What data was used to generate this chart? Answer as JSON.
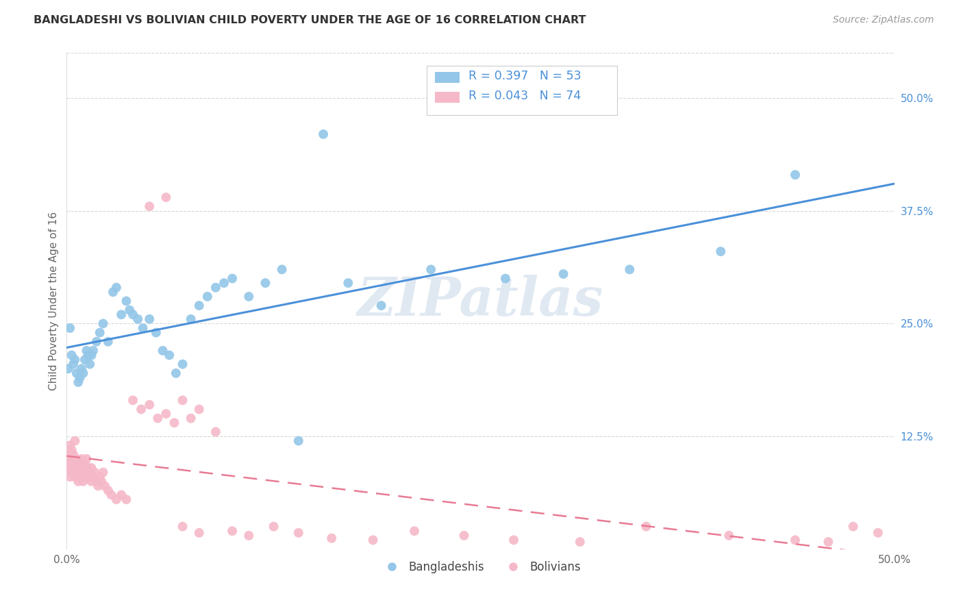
{
  "title": "BANGLADESHI VS BOLIVIAN CHILD POVERTY UNDER THE AGE OF 16 CORRELATION CHART",
  "source": "Source: ZipAtlas.com",
  "ylabel": "Child Poverty Under the Age of 16",
  "xlim": [
    0.0,
    0.5
  ],
  "ylim": [
    0.0,
    0.55
  ],
  "ytick_positions": [
    0.125,
    0.25,
    0.375,
    0.5
  ],
  "ytick_labels": [
    "12.5%",
    "25.0%",
    "37.5%",
    "50.0%"
  ],
  "bg_color": "#ffffff",
  "grid_color": "#d8d8d8",
  "watermark": "ZIPatlas",
  "legend_R1": "R = 0.397",
  "legend_N1": "N = 53",
  "legend_R2": "R = 0.043",
  "legend_N2": "N = 74",
  "blue_color": "#93c6e8",
  "pink_color": "#f5b8c8",
  "line_blue": "#4a90d9",
  "line_pink": "#e87a92",
  "tick_color": "#4a90d9",
  "title_color": "#333333",
  "bangladeshi_x": [
    0.001,
    0.002,
    0.003,
    0.004,
    0.005,
    0.006,
    0.007,
    0.008,
    0.009,
    0.01,
    0.011,
    0.012,
    0.013,
    0.014,
    0.015,
    0.016,
    0.018,
    0.02,
    0.022,
    0.025,
    0.028,
    0.03,
    0.033,
    0.036,
    0.038,
    0.04,
    0.043,
    0.046,
    0.05,
    0.054,
    0.058,
    0.062,
    0.066,
    0.07,
    0.075,
    0.08,
    0.085,
    0.09,
    0.095,
    0.1,
    0.11,
    0.12,
    0.13,
    0.14,
    0.155,
    0.17,
    0.19,
    0.22,
    0.265,
    0.3,
    0.34,
    0.395,
    0.44
  ],
  "bangladeshi_y": [
    0.2,
    0.245,
    0.215,
    0.205,
    0.21,
    0.195,
    0.185,
    0.19,
    0.2,
    0.195,
    0.21,
    0.22,
    0.215,
    0.205,
    0.215,
    0.22,
    0.23,
    0.24,
    0.25,
    0.23,
    0.285,
    0.29,
    0.26,
    0.275,
    0.265,
    0.26,
    0.255,
    0.245,
    0.255,
    0.24,
    0.22,
    0.215,
    0.195,
    0.205,
    0.255,
    0.27,
    0.28,
    0.29,
    0.295,
    0.3,
    0.28,
    0.295,
    0.31,
    0.12,
    0.46,
    0.295,
    0.27,
    0.31,
    0.3,
    0.305,
    0.31,
    0.33,
    0.415
  ],
  "bolivian_x": [
    0.001,
    0.001,
    0.002,
    0.002,
    0.002,
    0.003,
    0.003,
    0.003,
    0.004,
    0.004,
    0.005,
    0.005,
    0.005,
    0.006,
    0.006,
    0.007,
    0.007,
    0.008,
    0.008,
    0.009,
    0.009,
    0.01,
    0.01,
    0.011,
    0.011,
    0.012,
    0.012,
    0.013,
    0.014,
    0.015,
    0.015,
    0.016,
    0.017,
    0.018,
    0.019,
    0.02,
    0.021,
    0.022,
    0.023,
    0.025,
    0.027,
    0.03,
    0.033,
    0.036,
    0.04,
    0.045,
    0.05,
    0.055,
    0.06,
    0.065,
    0.07,
    0.075,
    0.08,
    0.09,
    0.1,
    0.11,
    0.125,
    0.14,
    0.16,
    0.185,
    0.21,
    0.24,
    0.27,
    0.31,
    0.35,
    0.4,
    0.44,
    0.46,
    0.475,
    0.49,
    0.05,
    0.06,
    0.07,
    0.08
  ],
  "bolivian_y": [
    0.09,
    0.105,
    0.095,
    0.08,
    0.115,
    0.085,
    0.1,
    0.11,
    0.09,
    0.105,
    0.08,
    0.095,
    0.12,
    0.085,
    0.1,
    0.075,
    0.09,
    0.08,
    0.095,
    0.085,
    0.1,
    0.075,
    0.09,
    0.08,
    0.095,
    0.085,
    0.1,
    0.09,
    0.08,
    0.075,
    0.09,
    0.08,
    0.085,
    0.075,
    0.07,
    0.08,
    0.075,
    0.085,
    0.07,
    0.065,
    0.06,
    0.055,
    0.06,
    0.055,
    0.165,
    0.155,
    0.16,
    0.145,
    0.15,
    0.14,
    0.165,
    0.145,
    0.155,
    0.13,
    0.02,
    0.015,
    0.025,
    0.018,
    0.012,
    0.01,
    0.02,
    0.015,
    0.01,
    0.008,
    0.025,
    0.015,
    0.01,
    0.008,
    0.025,
    0.018,
    0.38,
    0.39,
    0.025,
    0.018
  ]
}
